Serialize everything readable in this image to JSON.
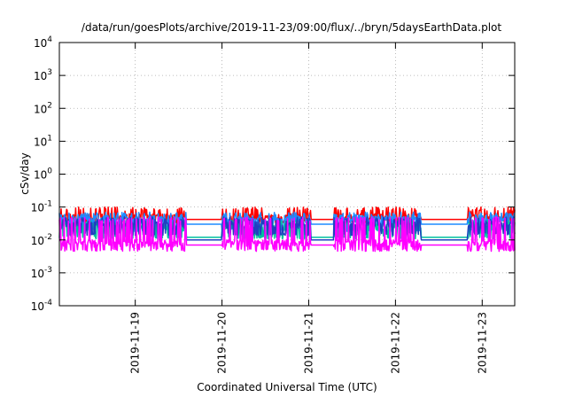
{
  "chart_data": {
    "type": "line",
    "title": "/data/run/goesPlots/archive/2019-11-23/09:00/flux/../bryn/5daysEarthData.plot",
    "xlabel": "Coordinated Universal Time (UTC)",
    "ylabel": "cSv/day",
    "y_scale": "log",
    "ylim": [
      0.0001,
      10000
    ],
    "y_ticks": [
      {
        "base": "10",
        "exp": "-4"
      },
      {
        "base": "10",
        "exp": "-3"
      },
      {
        "base": "10",
        "exp": "-2"
      },
      {
        "base": "10",
        "exp": "-1"
      },
      {
        "base": "10",
        "exp": "0"
      },
      {
        "base": "10",
        "exp": "1"
      },
      {
        "base": "10",
        "exp": "2"
      },
      {
        "base": "10",
        "exp": "3"
      },
      {
        "base": "10",
        "exp": "4"
      }
    ],
    "x_range": [
      "2019-11-18 03:00",
      "2019-11-23 09:00"
    ],
    "x_ticks": [
      "2019-11-19",
      "2019-11-20",
      "2019-11-21",
      "2019-11-22",
      "2019-11-23"
    ],
    "grid": true,
    "series": [
      {
        "color": "#ff0000",
        "base": 0.05,
        "spike_max": 0.1,
        "spike_min": 0.035,
        "gap_value": 0.042
      },
      {
        "color": "#1e8cff",
        "base": 0.042,
        "spike_max": 0.07,
        "spike_min": 0.02,
        "gap_value": 0.03
      },
      {
        "color": "#00c0a0",
        "base": 0.025,
        "spike_max": 0.04,
        "spike_min": 0.012,
        "gap_value": 0.012
      },
      {
        "color": "#2040c0",
        "base": 0.03,
        "spike_max": 0.05,
        "spike_min": 0.015,
        "gap_value": 0.01
      },
      {
        "color": "#ff00ff",
        "base": 0.008,
        "spike_max": 0.05,
        "spike_min": 0.005,
        "gap_value": 0.007
      }
    ],
    "active_intervals": [
      [
        "2019-11-18 03:00",
        "2019-11-19 14:00"
      ],
      [
        "2019-11-20 00:00",
        "2019-11-21 00:30"
      ],
      [
        "2019-11-21 07:00",
        "2019-11-22 07:00"
      ],
      [
        "2019-11-22 20:00",
        "2019-11-23 09:00"
      ]
    ]
  }
}
